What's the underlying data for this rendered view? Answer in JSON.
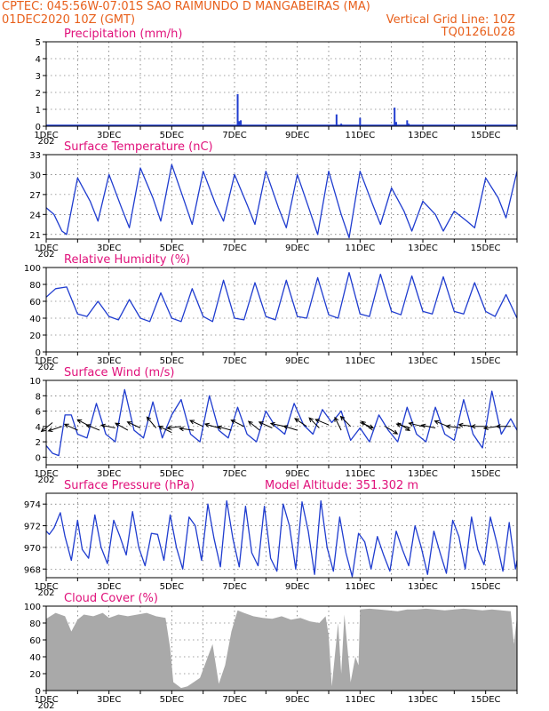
{
  "header": {
    "line1_left": "CPTEC:   045:56W-07:01S   SAO RAIMUNDO D MANGABEIRAS (MA)",
    "line2_left": "01DEC2020 10Z (GMT)",
    "line2_right": "Vertical Grid Line: 10Z",
    "line3_right": "TQ0126L028"
  },
  "x_tick_labels": [
    "1DEC",
    "3DEC",
    "5DEC",
    "7DEC",
    "9DEC",
    "11DEC",
    "13DEC",
    "15DEC"
  ],
  "x_tick_stub": "202",
  "colors": {
    "header": "#e8601c",
    "title": "#e0107a",
    "series": "#1f3ccf",
    "cloud": "#a9a9a9"
  },
  "chart_data": [
    {
      "id": "precip",
      "type": "bar",
      "title": "Precipitation (mm/h)",
      "xlabel": "",
      "ylabel": "",
      "x_range_days": [
        1.0,
        16.0
      ],
      "ylim": [
        0,
        5
      ],
      "yticks": [
        0,
        1,
        2,
        3,
        4,
        5
      ],
      "x": [
        7.1,
        7.15,
        7.2,
        10.25,
        10.4,
        11.0,
        12.1,
        12.15,
        12.5,
        12.55
      ],
      "values": [
        1.9,
        0.3,
        0.35,
        0.7,
        0.15,
        0.5,
        1.1,
        0.25,
        0.35,
        0.15
      ]
    },
    {
      "id": "temp",
      "type": "line",
      "title": "Surface Temperature (nC)",
      "xlabel": "",
      "ylabel": "",
      "x_range_days": [
        1.0,
        16.0
      ],
      "ylim": [
        20.3,
        33
      ],
      "yticks": [
        21,
        24,
        27,
        30,
        33
      ],
      "x": [
        1.0,
        1.25,
        1.5,
        1.65,
        2.0,
        2.4,
        2.65,
        3.0,
        3.4,
        3.65,
        4.0,
        4.4,
        4.65,
        5.0,
        5.4,
        5.65,
        6.0,
        6.4,
        6.65,
        7.0,
        7.4,
        7.65,
        8.0,
        8.4,
        8.65,
        9.0,
        9.4,
        9.65,
        10.0,
        10.4,
        10.65,
        11.0,
        11.4,
        11.65,
        12.0,
        12.4,
        12.65,
        13.0,
        13.4,
        13.65,
        14.0,
        14.4,
        14.65,
        15.0,
        15.4,
        15.65,
        16.0
      ],
      "values": [
        25.0,
        24.0,
        21.5,
        21.0,
        29.5,
        26.0,
        23.0,
        30.0,
        25.0,
        22.0,
        31.0,
        26.5,
        23.0,
        31.5,
        26.0,
        22.5,
        30.5,
        25.5,
        23.0,
        30.0,
        25.5,
        22.5,
        30.5,
        25.0,
        22.0,
        30.0,
        24.5,
        21.0,
        30.5,
        24.0,
        20.5,
        30.5,
        25.5,
        22.5,
        28.0,
        24.5,
        21.5,
        26.0,
        24.0,
        21.5,
        24.5,
        23.0,
        22.0,
        29.5,
        26.5,
        23.5,
        30.5
      ]
    },
    {
      "id": "rh",
      "type": "line",
      "title": "Relative Humidity (%)",
      "xlabel": "",
      "ylabel": "",
      "x_range_days": [
        1.0,
        16.0
      ],
      "ylim": [
        0,
        100
      ],
      "yticks": [
        0,
        20,
        40,
        60,
        80,
        100
      ],
      "x": [
        1.0,
        1.3,
        1.65,
        2.0,
        2.3,
        2.65,
        3.0,
        3.3,
        3.65,
        4.0,
        4.3,
        4.65,
        5.0,
        5.3,
        5.65,
        6.0,
        6.3,
        6.65,
        7.0,
        7.3,
        7.65,
        8.0,
        8.3,
        8.65,
        9.0,
        9.3,
        9.65,
        10.0,
        10.3,
        10.65,
        11.0,
        11.3,
        11.65,
        12.0,
        12.3,
        12.65,
        13.0,
        13.3,
        13.65,
        14.0,
        14.3,
        14.65,
        15.0,
        15.3,
        15.65,
        16.0
      ],
      "values": [
        65,
        75,
        77,
        45,
        42,
        60,
        42,
        38,
        62,
        40,
        36,
        70,
        40,
        36,
        75,
        42,
        36,
        85,
        40,
        38,
        82,
        42,
        38,
        85,
        42,
        40,
        88,
        44,
        40,
        94,
        45,
        42,
        92,
        48,
        44,
        90,
        48,
        45,
        89,
        48,
        45,
        82,
        48,
        42,
        68,
        40
      ]
    },
    {
      "id": "wind",
      "type": "line",
      "title": "Surface Wind (m/s)",
      "xlabel": "",
      "ylabel": "",
      "x_range_days": [
        1.0,
        16.0
      ],
      "ylim": [
        -1,
        10
      ],
      "yticks": [
        0,
        2,
        4,
        6,
        8,
        10
      ],
      "x": [
        1.0,
        1.2,
        1.4,
        1.6,
        1.8,
        2.0,
        2.3,
        2.6,
        2.9,
        3.2,
        3.5,
        3.8,
        4.1,
        4.4,
        4.7,
        5.0,
        5.3,
        5.6,
        5.9,
        6.2,
        6.5,
        6.8,
        7.1,
        7.4,
        7.7,
        8.0,
        8.3,
        8.6,
        8.9,
        9.2,
        9.5,
        9.8,
        10.1,
        10.4,
        10.7,
        11.0,
        11.3,
        11.6,
        11.9,
        12.2,
        12.5,
        12.8,
        13.1,
        13.4,
        13.7,
        14.0,
        14.3,
        14.6,
        14.9,
        15.2,
        15.5,
        15.8,
        16.0
      ],
      "values": [
        1.5,
        0.5,
        0.2,
        5.5,
        5.5,
        3.0,
        2.5,
        7.0,
        3.0,
        2.0,
        8.8,
        3.5,
        2.5,
        7.2,
        2.5,
        5.5,
        7.5,
        3.0,
        2.0,
        8.0,
        3.5,
        2.5,
        6.5,
        3.0,
        2.0,
        6.0,
        4.0,
        3.0,
        7.0,
        4.2,
        3.0,
        6.2,
        4.5,
        6.0,
        2.2,
        3.8,
        2.0,
        5.5,
        3.5,
        2.0,
        6.5,
        3.0,
        2.0,
        6.5,
        3.0,
        2.2,
        7.5,
        3.0,
        1.2,
        8.6,
        3.0,
        5.0,
        3.5
      ],
      "arrows_x": [
        1.2,
        1.5,
        2.0,
        2.4,
        2.7,
        3.2,
        3.6,
        4.0,
        4.5,
        5.0,
        5.3,
        5.7,
        6.0,
        6.5,
        6.9,
        7.3,
        7.8,
        8.2,
        8.6,
        9.0,
        9.3,
        9.7,
        10.0,
        10.4,
        10.7,
        11.0,
        11.4,
        11.8,
        12.2,
        12.6,
        13.0,
        13.4,
        13.8,
        14.2,
        14.6,
        15.0,
        15.4,
        15.8
      ],
      "arrows_y": [
        4.5,
        4.0,
        3.5,
        4.0,
        3.5,
        3.8,
        3.5,
        3.8,
        3.8,
        3.2,
        4.0,
        3.5,
        4.0,
        3.8,
        3.5,
        4.0,
        3.5,
        3.8,
        4.0,
        3.5,
        4.0,
        3.8,
        4.2,
        3.5,
        4.0,
        4.5,
        3.5,
        4.0,
        4.5,
        3.8,
        4.0,
        3.8,
        4.0,
        3.8,
        4.0,
        4.0,
        4.0,
        4.0
      ],
      "arrows_u": [
        1.0,
        1.2,
        1.3,
        1.5,
        1.2,
        1.5,
        1.4,
        1.3,
        1.0,
        1.2,
        1.6,
        1.5,
        1.3,
        1.4,
        1.5,
        1.2,
        1.0,
        1.1,
        1.4,
        1.6,
        1.2,
        1.0,
        1.2,
        0.6,
        0.8,
        -1.0,
        1.0,
        -1.0,
        -1.2,
        1.4,
        1.3,
        1.5,
        1.2,
        1.5,
        1.6,
        1.8,
        1.5,
        1.6
      ],
      "arrows_v": [
        0.8,
        0.4,
        -0.6,
        -0.8,
        -0.5,
        -0.3,
        -0.8,
        -0.6,
        -1.2,
        -0.6,
        0.2,
        -0.2,
        -0.6,
        -0.4,
        -0.4,
        -0.6,
        -0.8,
        -0.5,
        -0.3,
        -0.5,
        -0.8,
        -1.0,
        -0.5,
        -1.2,
        -0.8,
        0.4,
        -0.8,
        0.6,
        0.8,
        -0.4,
        -0.3,
        -0.3,
        -0.5,
        -0.2,
        -0.2,
        0.0,
        0.2,
        0.0
      ]
    },
    {
      "id": "pres",
      "type": "line",
      "title": "Surface Pressure (hPa)",
      "annotation": "Model Altitude: 351.302 m",
      "xlabel": "",
      "ylabel": "",
      "x_range_days": [
        1.0,
        16.0
      ],
      "ylim": [
        967.2,
        975.0
      ],
      "yticks": [
        968,
        970,
        972,
        974
      ],
      "x": [
        1.0,
        1.1,
        1.25,
        1.45,
        1.6,
        1.8,
        2.0,
        2.15,
        2.35,
        2.55,
        2.75,
        2.95,
        3.15,
        3.35,
        3.55,
        3.75,
        3.95,
        4.15,
        4.35,
        4.55,
        4.75,
        4.95,
        5.15,
        5.35,
        5.55,
        5.75,
        5.95,
        6.15,
        6.35,
        6.55,
        6.75,
        6.95,
        7.15,
        7.35,
        7.55,
        7.75,
        7.95,
        8.15,
        8.35,
        8.55,
        8.75,
        8.95,
        9.15,
        9.35,
        9.55,
        9.75,
        9.95,
        10.15,
        10.35,
        10.55,
        10.75,
        10.95,
        11.15,
        11.35,
        11.55,
        11.75,
        11.95,
        12.15,
        12.35,
        12.55,
        12.75,
        12.95,
        13.15,
        13.35,
        13.55,
        13.75,
        13.95,
        14.15,
        14.35,
        14.55,
        14.75,
        14.95,
        15.15,
        15.35,
        15.55,
        15.75,
        15.95,
        16.0
      ],
      "values": [
        971.5,
        971.2,
        971.8,
        973.2,
        971.0,
        968.8,
        972.5,
        969.8,
        969.0,
        973.0,
        970.0,
        968.5,
        972.5,
        971.0,
        969.3,
        973.3,
        970.0,
        968.3,
        971.3,
        971.2,
        968.8,
        973.0,
        970.0,
        968.0,
        972.8,
        972.0,
        968.8,
        974.0,
        970.8,
        968.2,
        974.3,
        970.8,
        968.2,
        973.8,
        969.5,
        968.3,
        973.8,
        969.0,
        967.8,
        974.0,
        972.0,
        968.0,
        974.2,
        971.5,
        967.5,
        974.3,
        970.0,
        967.8,
        972.8,
        969.5,
        967.3,
        971.3,
        970.5,
        968.0,
        971.0,
        969.3,
        967.8,
        971.5,
        969.8,
        968.3,
        972.0,
        970.0,
        967.5,
        971.5,
        969.5,
        967.6,
        972.5,
        971.0,
        968.0,
        972.8,
        969.8,
        968.4,
        972.8,
        970.5,
        967.8,
        972.3,
        968.0,
        968.8
      ]
    },
    {
      "id": "cloud",
      "type": "area",
      "title": "Cloud Cover (%)",
      "xlabel": "",
      "ylabel": "",
      "x_range_days": [
        1.0,
        16.0
      ],
      "ylim": [
        0,
        100
      ],
      "yticks": [
        0,
        20,
        40,
        60,
        80,
        100
      ],
      "x": [
        1.0,
        1.3,
        1.6,
        1.8,
        2.0,
        2.2,
        2.5,
        2.8,
        3.0,
        3.3,
        3.6,
        3.9,
        4.2,
        4.5,
        4.8,
        4.95,
        5.05,
        5.3,
        5.5,
        5.7,
        5.9,
        6.1,
        6.3,
        6.5,
        6.7,
        6.9,
        7.1,
        7.3,
        7.6,
        7.9,
        8.2,
        8.5,
        8.8,
        9.1,
        9.4,
        9.7,
        9.9,
        10.0,
        10.1,
        10.3,
        10.4,
        10.5,
        10.7,
        10.85,
        10.95,
        11.0,
        11.3,
        11.6,
        11.9,
        12.2,
        12.5,
        12.8,
        13.1,
        13.4,
        13.7,
        14.0,
        14.3,
        14.6,
        14.9,
        15.2,
        15.5,
        15.8,
        15.9,
        16.0
      ],
      "values": [
        85,
        92,
        88,
        70,
        84,
        90,
        88,
        92,
        86,
        90,
        88,
        90,
        92,
        88,
        86,
        50,
        10,
        3,
        5,
        10,
        15,
        35,
        55,
        8,
        30,
        70,
        95,
        92,
        88,
        86,
        85,
        88,
        84,
        86,
        82,
        80,
        88,
        65,
        5,
        80,
        20,
        90,
        10,
        40,
        30,
        96,
        97,
        96,
        95,
        94,
        96,
        96,
        97,
        96,
        95,
        96,
        97,
        96,
        95,
        96,
        95,
        94,
        55,
        88
      ]
    }
  ]
}
